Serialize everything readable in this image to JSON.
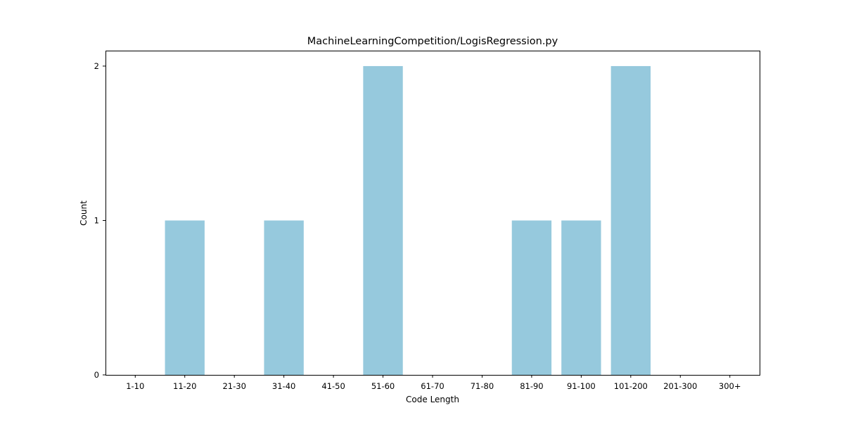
{
  "chart_data": {
    "type": "bar",
    "title": "MachineLearningCompetition/LogisRegression.py",
    "xlabel": "Code Length",
    "ylabel": "Count",
    "categories": [
      "1-10",
      "11-20",
      "21-30",
      "31-40",
      "41-50",
      "51-60",
      "61-70",
      "71-80",
      "81-90",
      "91-100",
      "101-200",
      "201-300",
      "300+"
    ],
    "values": [
      0,
      1,
      0,
      1,
      0,
      2,
      0,
      0,
      1,
      1,
      2,
      0,
      0
    ],
    "yticks": [
      0,
      1,
      2
    ],
    "ylim": [
      0,
      2.1
    ],
    "bar_color": "#96c9dd",
    "grid": false,
    "legend": "none"
  }
}
